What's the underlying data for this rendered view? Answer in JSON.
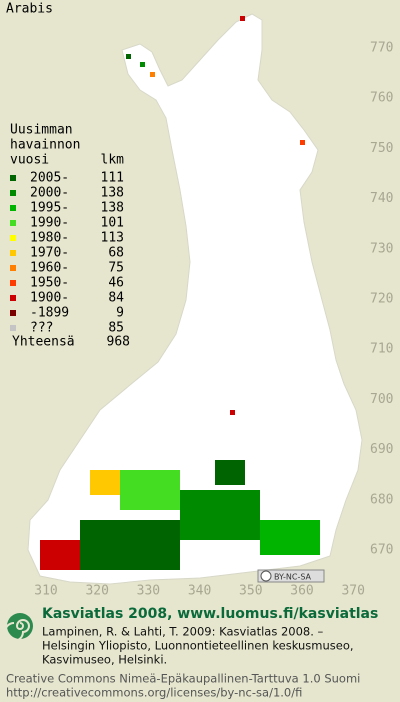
{
  "map": {
    "title": "Arabis",
    "legend": {
      "heading": [
        "Uusimman",
        "havainnon",
        "vuosi"
      ],
      "count_heading": "lkm",
      "rows": [
        {
          "label": "2005-",
          "count": 111,
          "color": "#006400"
        },
        {
          "label": "2000-",
          "count": 138,
          "color": "#008a00"
        },
        {
          "label": "1995-",
          "count": 138,
          "color": "#00b400"
        },
        {
          "label": "1990-",
          "count": 101,
          "color": "#44dd22"
        },
        {
          "label": "1980-",
          "count": 113,
          "color": "#ffff00"
        },
        {
          "label": "1970-",
          "count": 68,
          "color": "#ffc800"
        },
        {
          "label": "1960-",
          "count": 75,
          "color": "#ff8000"
        },
        {
          "label": "1950-",
          "count": 46,
          "color": "#ff3c00"
        },
        {
          "label": "1900-",
          "count": 84,
          "color": "#cc0000"
        },
        {
          "label": "-1899",
          "count": 9,
          "color": "#7a0000"
        },
        {
          "label": "???",
          "count": 85,
          "color": "#c4c4c4"
        }
      ],
      "total_label": "Yhteensä",
      "total": 968
    },
    "y_labels": [
      770,
      760,
      750,
      740,
      730,
      720,
      710,
      700,
      690,
      680,
      670
    ],
    "x_labels": [
      310,
      320,
      330,
      340,
      350,
      360,
      370
    ],
    "license_badge": "BY-NC-SA",
    "footer": {
      "headline": "Kasviatlas 2008, www.luomus.fi/kasviatlas",
      "citation": [
        "Lampinen, R. & Lahti, T. 2009: Kasviatlas 2008. –",
        "Helsingin Yliopisto, Luonnontieteellinen keskusmuseo,",
        "Kasvimuseo, Helsinki."
      ],
      "license": [
        "Creative Commons Nimeä-Epäkaupallinen-Tarttuva 1.0 Suomi",
        "http://creativecommons.org/licenses/by-nc-sa/1.0/fi"
      ]
    }
  }
}
